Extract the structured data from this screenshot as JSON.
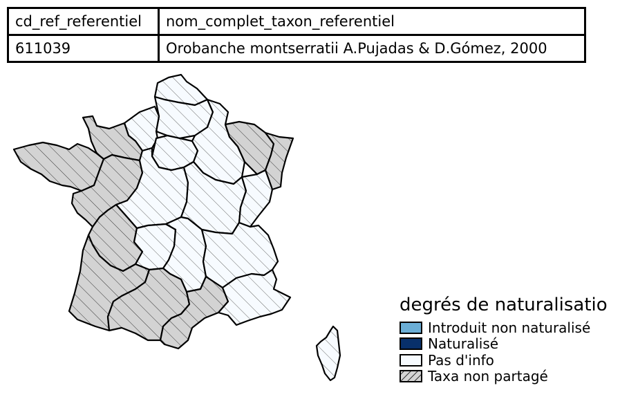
{
  "table": {
    "headers": [
      "cd_ref_referentiel",
      "nom_complet_taxon_referentiel"
    ],
    "row": [
      "611039",
      "Orobanche montserratii A.Pujadas & D.Gómez, 2000"
    ]
  },
  "map": {
    "regions": [
      {
        "id": "nord-pas-de-calais",
        "status": "pas-info"
      },
      {
        "id": "picardie",
        "status": "pas-info"
      },
      {
        "id": "haute-normandie",
        "status": "pas-info"
      },
      {
        "id": "basse-normandie",
        "status": "non-partage"
      },
      {
        "id": "bretagne",
        "status": "non-partage"
      },
      {
        "id": "ile-de-france",
        "status": "pas-info"
      },
      {
        "id": "champagne-ardenne",
        "status": "pas-info"
      },
      {
        "id": "lorraine",
        "status": "non-partage"
      },
      {
        "id": "alsace",
        "status": "non-partage"
      },
      {
        "id": "pays-de-la-loire",
        "status": "non-partage"
      },
      {
        "id": "centre",
        "status": "pas-info"
      },
      {
        "id": "bourgogne",
        "status": "pas-info"
      },
      {
        "id": "franche-comte",
        "status": "pas-info"
      },
      {
        "id": "poitou-charentes",
        "status": "non-partage"
      },
      {
        "id": "limousin",
        "status": "pas-info"
      },
      {
        "id": "auvergne",
        "status": "pas-info"
      },
      {
        "id": "rhone-alpes",
        "status": "pas-info"
      },
      {
        "id": "aquitaine",
        "status": "non-partage"
      },
      {
        "id": "midi-pyrenees",
        "status": "non-partage"
      },
      {
        "id": "languedoc-roussillon",
        "status": "non-partage"
      },
      {
        "id": "paca",
        "status": "pas-info"
      },
      {
        "id": "corse",
        "status": "pas-info"
      }
    ]
  },
  "legend": {
    "title": "degrés de naturalisatio",
    "items": [
      {
        "label": "Introduit non naturalisé",
        "color": "#6baed6",
        "hatch": false
      },
      {
        "label": "Naturalisé",
        "color": "#08306b",
        "hatch": false
      },
      {
        "label": "Pas d'info",
        "color": "#f7fbff",
        "hatch": false
      },
      {
        "label": "Taxa non partagé",
        "color": "#d3d3d3",
        "hatch": true
      }
    ]
  }
}
